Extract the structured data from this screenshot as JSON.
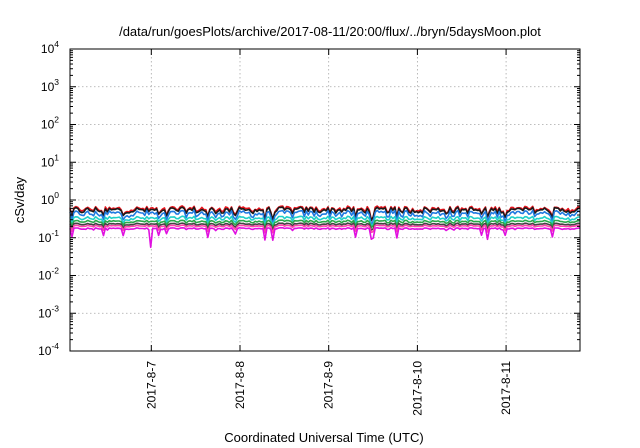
{
  "chart_data": {
    "type": "line",
    "title": "/data/run/goesPlots/archive/2017-08-11/20:00/flux/../bryn/5daysMoon.plot",
    "xlabel": "Coordinated Universal Time (UTC)",
    "ylabel": "cSv/day",
    "y_scale": "log",
    "ylim": [
      0.0001,
      10000
    ],
    "xlim": [
      "2017-08-06T02:00",
      "2017-08-11T20:00"
    ],
    "grid": true,
    "legend": "none",
    "y_ticks": [
      {
        "base": "10",
        "exp": "-4",
        "value": 0.0001
      },
      {
        "base": "10",
        "exp": "-3",
        "value": 0.001
      },
      {
        "base": "10",
        "exp": "-2",
        "value": 0.01
      },
      {
        "base": "10",
        "exp": "-1",
        "value": 0.1
      },
      {
        "base": "10",
        "exp": "0",
        "value": 1
      },
      {
        "base": "10",
        "exp": "1",
        "value": 10
      },
      {
        "base": "10",
        "exp": "2",
        "value": 100
      },
      {
        "base": "10",
        "exp": "3",
        "value": 1000
      },
      {
        "base": "10",
        "exp": "4",
        "value": 10000
      }
    ],
    "x_ticks": [
      {
        "label": "2017-8-7",
        "value": "2017-08-07T00:00"
      },
      {
        "label": "2017-8-8",
        "value": "2017-08-08T00:00"
      },
      {
        "label": "2017-8-9",
        "value": "2017-08-09T00:00"
      },
      {
        "label": "2017-8-10",
        "value": "2017-08-10T00:00"
      },
      {
        "label": "2017-8-11",
        "value": "2017-08-11T00:00"
      }
    ],
    "series": [
      {
        "color": "#e8141c",
        "base": 0.58,
        "spread": 0.18,
        "dip": 0.55
      },
      {
        "color": "#1a1a1a",
        "base": 0.54,
        "spread": 0.18,
        "dip": 0.5
      },
      {
        "color": "#1f7ae0",
        "base": 0.44,
        "spread": 0.2,
        "dip": 0.55
      },
      {
        "color": "#1fd0c8",
        "base": 0.33,
        "spread": 0.12,
        "dip": 0.4
      },
      {
        "color": "#2aa84a",
        "base": 0.27,
        "spread": 0.08,
        "dip": 0.35
      },
      {
        "color": "#444444",
        "base": 0.23,
        "spread": 0.06,
        "dip": 0.35
      },
      {
        "color": "#ff44aa",
        "base": 0.205,
        "spread": 0.05,
        "dip": 0.4
      },
      {
        "color": "#e010e0",
        "base": 0.175,
        "spread": 0.05,
        "dip": 0.6
      }
    ]
  }
}
